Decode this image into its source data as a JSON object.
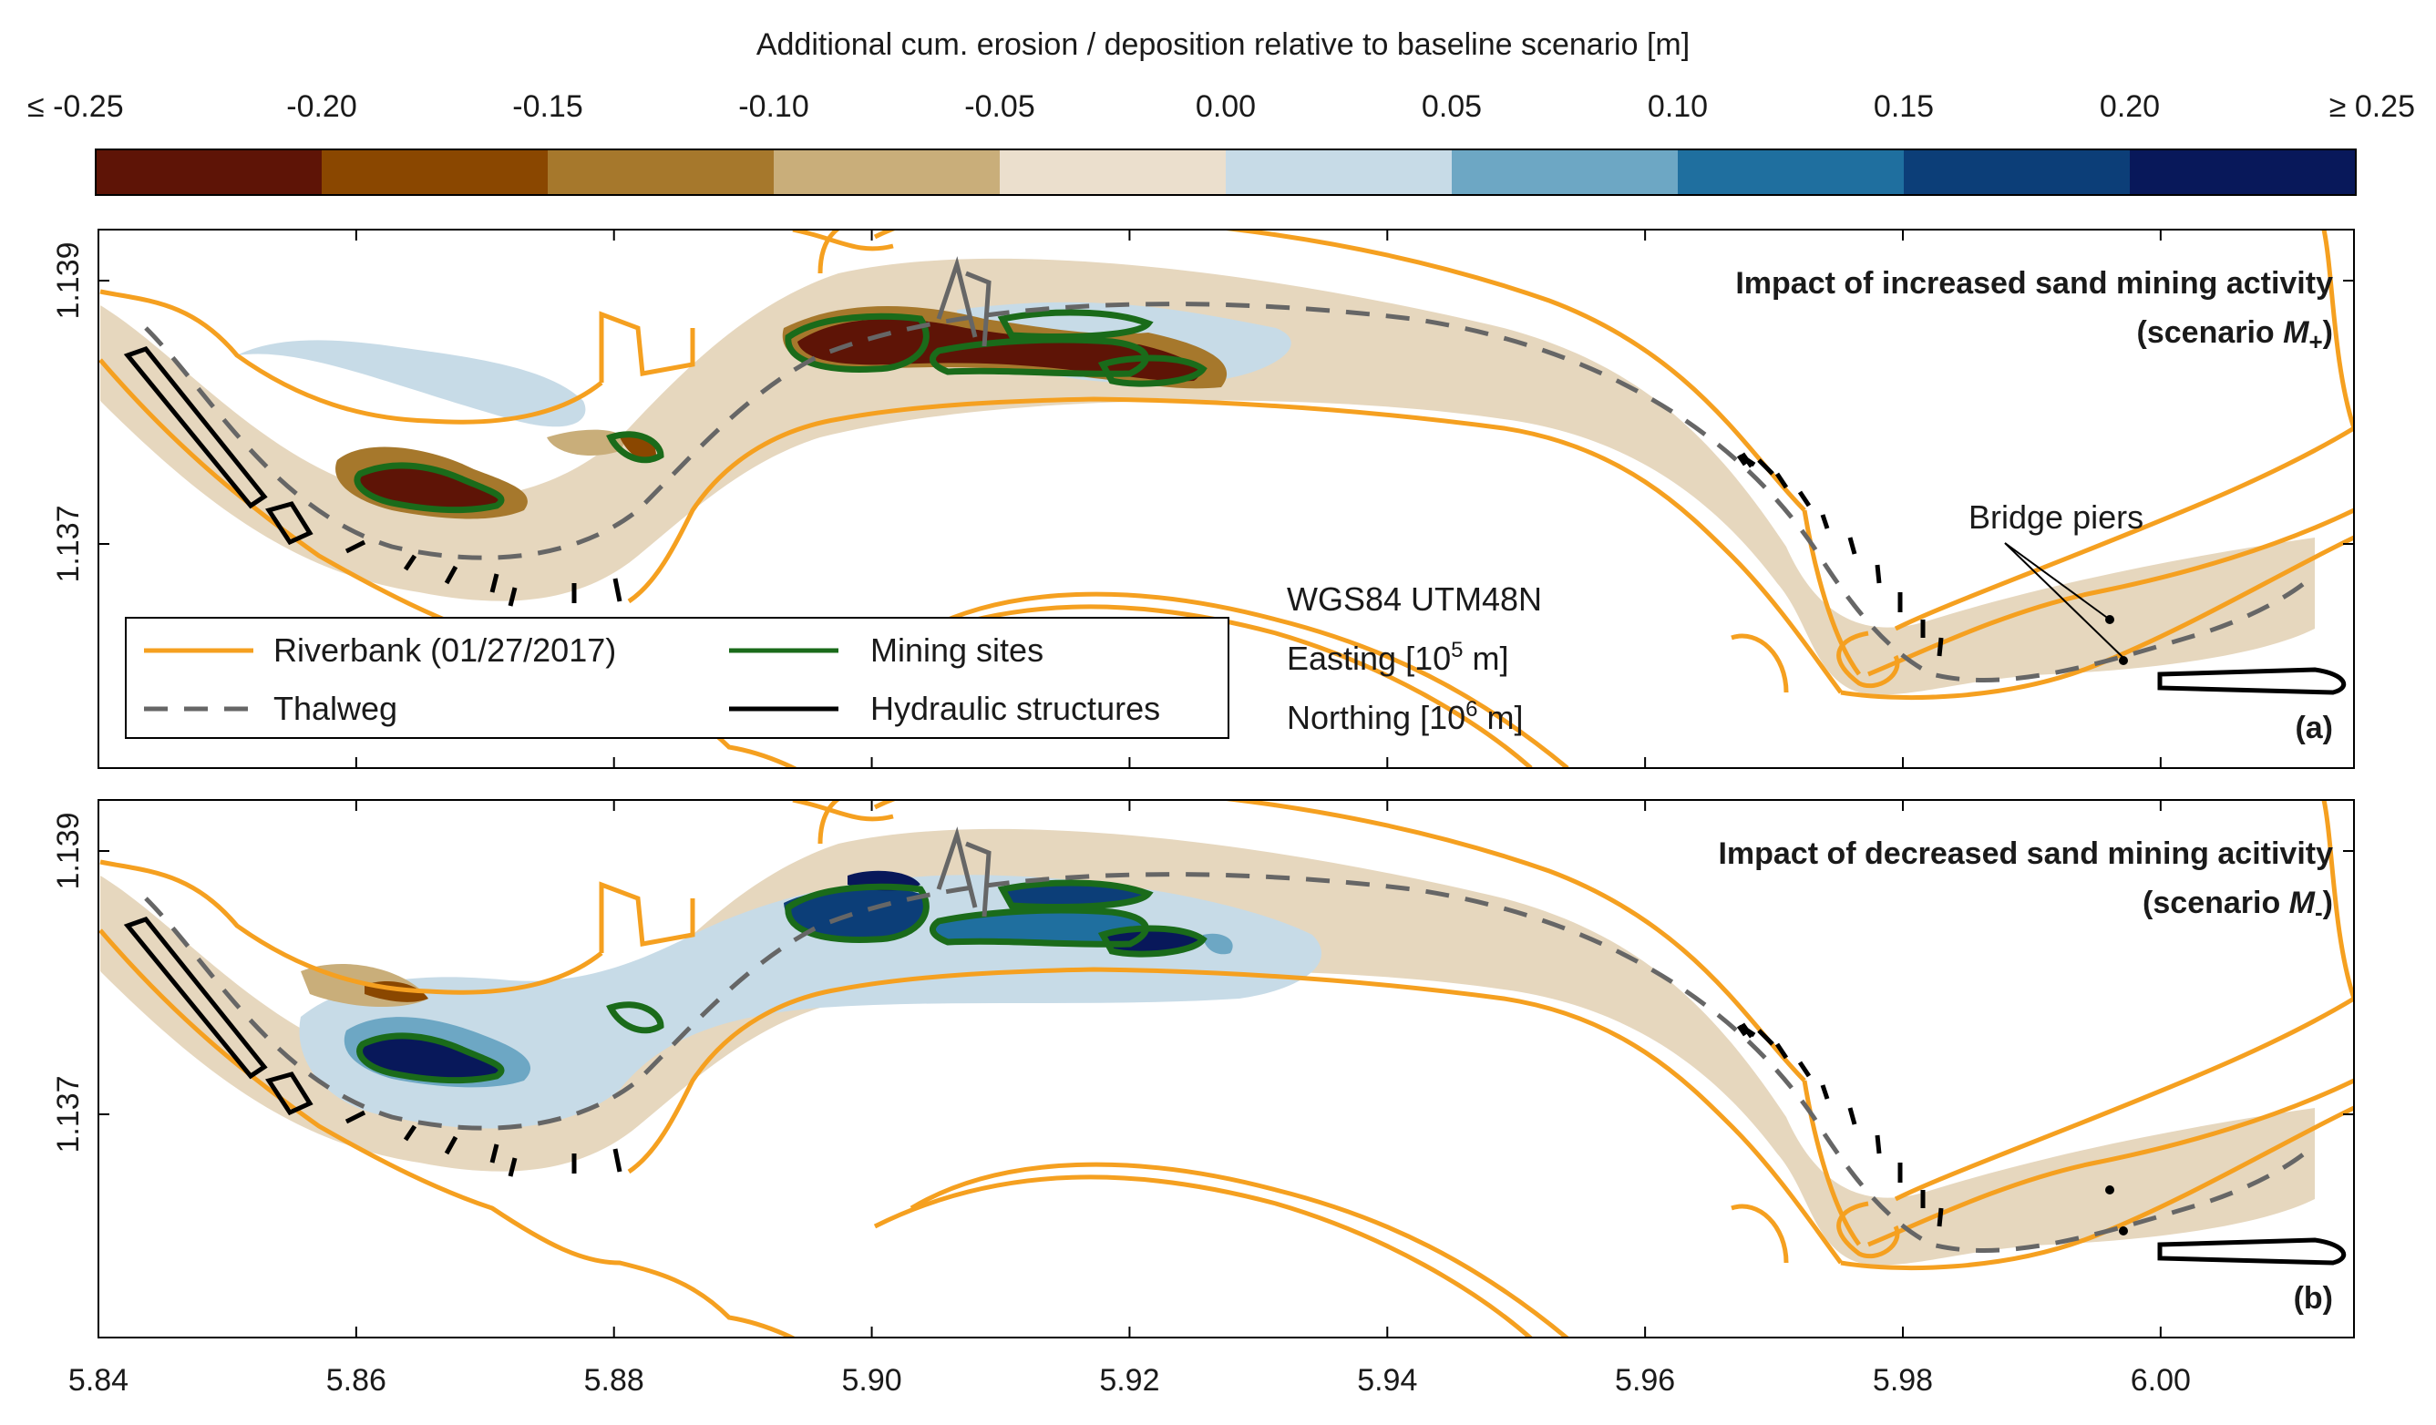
{
  "colorbar": {
    "title": "Additional cum. erosion / deposition relative to baseline scenario [m]",
    "tick_labels": [
      "≤ -0.25",
      "-0.20",
      "-0.15",
      "-0.10",
      "-0.05",
      "0.00",
      "0.05",
      "0.10",
      "0.15",
      "0.20",
      "≥ 0.25"
    ],
    "colors": [
      "#5e1406",
      "#8a4700",
      "#a6782c",
      "#c9ae7a",
      "#ebdfcd",
      "#c7dbe7",
      "#6da7c4",
      "#1f6f9f",
      "#0c3e78",
      "#08185a"
    ]
  },
  "axes": {
    "x_tick_labels": [
      "5.84",
      "5.86",
      "5.88",
      "5.90",
      "5.92",
      "5.94",
      "5.96",
      "5.98",
      "6.00"
    ],
    "y_tick_labels": [
      "1.139",
      "1.137"
    ]
  },
  "panels": [
    {
      "title": "Impact of increased sand mining activity",
      "scenario_prefix": "(scenario ",
      "scenario_symbol": "M",
      "scenario_sub": "+",
      "scenario_suffix": ")",
      "label": "(a)"
    },
    {
      "title": "Impact of decreased sand mining acitivity",
      "scenario_prefix": "(scenario ",
      "scenario_symbol": "M",
      "scenario_sub": "-",
      "scenario_suffix": ")",
      "label": "(b)"
    }
  ],
  "legend": {
    "riverbank": "Riverbank (01/27/2017)",
    "thalweg": "Thalweg",
    "mining": "Mining sites",
    "hydraulic": "Hydraulic structures"
  },
  "crs": {
    "line1": "WGS84 UTM48N",
    "easting_prefix": "Easting [10",
    "easting_exp": "5",
    "easting_suffix": " m]",
    "northing_prefix": "Northing [10",
    "northing_exp": "6",
    "northing_suffix": " m]"
  },
  "annotation": {
    "bridge_piers": "Bridge piers"
  },
  "style_colors": {
    "riverbank": "#f5a020",
    "thalweg": "#666666",
    "mining": "#1a6b1a",
    "structure": "#000000",
    "channel": "#e6d7be"
  }
}
